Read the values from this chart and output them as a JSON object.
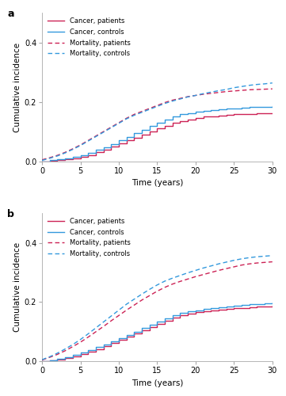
{
  "panel_a": {
    "cancer_patients_x": [
      0,
      1,
      2,
      3,
      4,
      5,
      6,
      7,
      8,
      9,
      10,
      11,
      12,
      13,
      14,
      15,
      16,
      17,
      18,
      19,
      20,
      21,
      22,
      23,
      24,
      25,
      26,
      27,
      28,
      29,
      30
    ],
    "cancer_patients_y": [
      0.0,
      0.002,
      0.004,
      0.006,
      0.01,
      0.015,
      0.02,
      0.03,
      0.04,
      0.05,
      0.06,
      0.07,
      0.08,
      0.09,
      0.1,
      0.11,
      0.12,
      0.13,
      0.135,
      0.14,
      0.145,
      0.15,
      0.152,
      0.155,
      0.156,
      0.158,
      0.159,
      0.16,
      0.161,
      0.162,
      0.163
    ],
    "cancer_controls_x": [
      0,
      1,
      2,
      3,
      4,
      5,
      6,
      7,
      8,
      9,
      10,
      11,
      12,
      13,
      14,
      15,
      16,
      17,
      18,
      19,
      20,
      21,
      22,
      23,
      24,
      25,
      26,
      27,
      28,
      29,
      30
    ],
    "cancer_controls_y": [
      0.0,
      0.003,
      0.006,
      0.01,
      0.015,
      0.02,
      0.028,
      0.038,
      0.048,
      0.058,
      0.07,
      0.082,
      0.094,
      0.106,
      0.118,
      0.13,
      0.14,
      0.15,
      0.158,
      0.163,
      0.167,
      0.17,
      0.173,
      0.175,
      0.177,
      0.179,
      0.181,
      0.182,
      0.183,
      0.184,
      0.185
    ],
    "mortality_patients_x": [
      0,
      1,
      2,
      3,
      4,
      5,
      6,
      7,
      8,
      9,
      10,
      11,
      12,
      13,
      14,
      15,
      16,
      17,
      18,
      19,
      20,
      21,
      22,
      23,
      24,
      25,
      26,
      27,
      28,
      29,
      30
    ],
    "mortality_patients_y": [
      0.005,
      0.012,
      0.02,
      0.03,
      0.042,
      0.055,
      0.07,
      0.085,
      0.1,
      0.115,
      0.13,
      0.145,
      0.158,
      0.168,
      0.178,
      0.188,
      0.198,
      0.206,
      0.212,
      0.218,
      0.222,
      0.226,
      0.229,
      0.232,
      0.235,
      0.237,
      0.239,
      0.241,
      0.242,
      0.243,
      0.244
    ],
    "mortality_controls_x": [
      0,
      1,
      2,
      3,
      4,
      5,
      6,
      7,
      8,
      9,
      10,
      11,
      12,
      13,
      14,
      15,
      16,
      17,
      18,
      19,
      20,
      21,
      22,
      23,
      24,
      25,
      26,
      27,
      28,
      29,
      30
    ],
    "mortality_controls_y": [
      0.003,
      0.01,
      0.018,
      0.028,
      0.04,
      0.053,
      0.068,
      0.083,
      0.098,
      0.113,
      0.128,
      0.143,
      0.155,
      0.165,
      0.175,
      0.185,
      0.195,
      0.203,
      0.21,
      0.217,
      0.222,
      0.228,
      0.233,
      0.238,
      0.242,
      0.248,
      0.252,
      0.256,
      0.259,
      0.261,
      0.264
    ],
    "ylim": [
      0,
      0.5
    ],
    "yticks": [
      0.0,
      0.2,
      0.4
    ],
    "ylabel": "Cumulative incidence",
    "xlabel": "Time (years)",
    "panel_label": "a"
  },
  "panel_b": {
    "cancer_patients_x": [
      0,
      1,
      2,
      3,
      4,
      5,
      6,
      7,
      8,
      9,
      10,
      11,
      12,
      13,
      14,
      15,
      16,
      17,
      18,
      19,
      20,
      21,
      22,
      23,
      24,
      25,
      26,
      27,
      28,
      29,
      30
    ],
    "cancer_patients_y": [
      0.0,
      0.003,
      0.007,
      0.012,
      0.018,
      0.025,
      0.033,
      0.042,
      0.052,
      0.062,
      0.072,
      0.083,
      0.094,
      0.105,
      0.116,
      0.127,
      0.138,
      0.148,
      0.156,
      0.162,
      0.167,
      0.17,
      0.173,
      0.175,
      0.177,
      0.179,
      0.181,
      0.183,
      0.184,
      0.185,
      0.187
    ],
    "cancer_controls_x": [
      0,
      1,
      2,
      3,
      4,
      5,
      6,
      7,
      8,
      9,
      10,
      11,
      12,
      13,
      14,
      15,
      16,
      17,
      18,
      19,
      20,
      21,
      22,
      23,
      24,
      25,
      26,
      27,
      28,
      29,
      30
    ],
    "cancer_controls_y": [
      0.0,
      0.004,
      0.009,
      0.015,
      0.022,
      0.03,
      0.038,
      0.048,
      0.058,
      0.068,
      0.079,
      0.09,
      0.101,
      0.112,
      0.123,
      0.134,
      0.145,
      0.155,
      0.163,
      0.169,
      0.173,
      0.177,
      0.18,
      0.183,
      0.185,
      0.188,
      0.19,
      0.192,
      0.194,
      0.196,
      0.198
    ],
    "mortality_patients_x": [
      0,
      1,
      2,
      3,
      4,
      5,
      6,
      7,
      8,
      9,
      10,
      11,
      12,
      13,
      14,
      15,
      16,
      17,
      18,
      19,
      20,
      21,
      22,
      23,
      24,
      25,
      26,
      27,
      28,
      29,
      30
    ],
    "mortality_patients_y": [
      0.005,
      0.014,
      0.024,
      0.036,
      0.05,
      0.065,
      0.082,
      0.1,
      0.118,
      0.137,
      0.155,
      0.173,
      0.19,
      0.207,
      0.222,
      0.237,
      0.25,
      0.261,
      0.27,
      0.278,
      0.286,
      0.293,
      0.3,
      0.307,
      0.313,
      0.319,
      0.325,
      0.329,
      0.332,
      0.334,
      0.336
    ],
    "mortality_controls_x": [
      0,
      1,
      2,
      3,
      4,
      5,
      6,
      7,
      8,
      9,
      10,
      11,
      12,
      13,
      14,
      15,
      16,
      17,
      18,
      19,
      20,
      21,
      22,
      23,
      24,
      25,
      26,
      27,
      28,
      29,
      30
    ],
    "mortality_controls_y": [
      0.006,
      0.016,
      0.028,
      0.042,
      0.057,
      0.074,
      0.093,
      0.113,
      0.133,
      0.153,
      0.173,
      0.193,
      0.21,
      0.227,
      0.243,
      0.258,
      0.271,
      0.281,
      0.29,
      0.299,
      0.307,
      0.315,
      0.322,
      0.329,
      0.335,
      0.341,
      0.346,
      0.35,
      0.353,
      0.355,
      0.357
    ],
    "ylim": [
      0,
      0.5
    ],
    "yticks": [
      0.0,
      0.2,
      0.4
    ],
    "ylabel": "Cumulative incidence",
    "xlabel": "Time (years)",
    "panel_label": "b"
  },
  "legend_entries": [
    {
      "label": "Cancer, patients",
      "color": "#cc2255",
      "linestyle": "solid"
    },
    {
      "label": "Cancer, controls",
      "color": "#3399dd",
      "linestyle": "solid"
    },
    {
      "label": "Mortality, patients",
      "color": "#cc2255",
      "linestyle": "dashed"
    },
    {
      "label": "Mortality, controls",
      "color": "#3399dd",
      "linestyle": "dashed"
    }
  ],
  "xticks": [
    0,
    5,
    10,
    15,
    20,
    25,
    30
  ],
  "xlim": [
    0,
    30
  ],
  "line_width": 1.0,
  "bg_color": "#ffffff"
}
